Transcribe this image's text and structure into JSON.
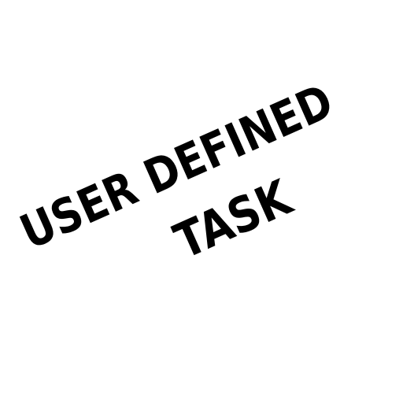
{
  "label": {
    "line1": "USER DEFINED",
    "line2": "TASK"
  },
  "colors": {
    "background": "#ffffff",
    "text": "#000000"
  }
}
